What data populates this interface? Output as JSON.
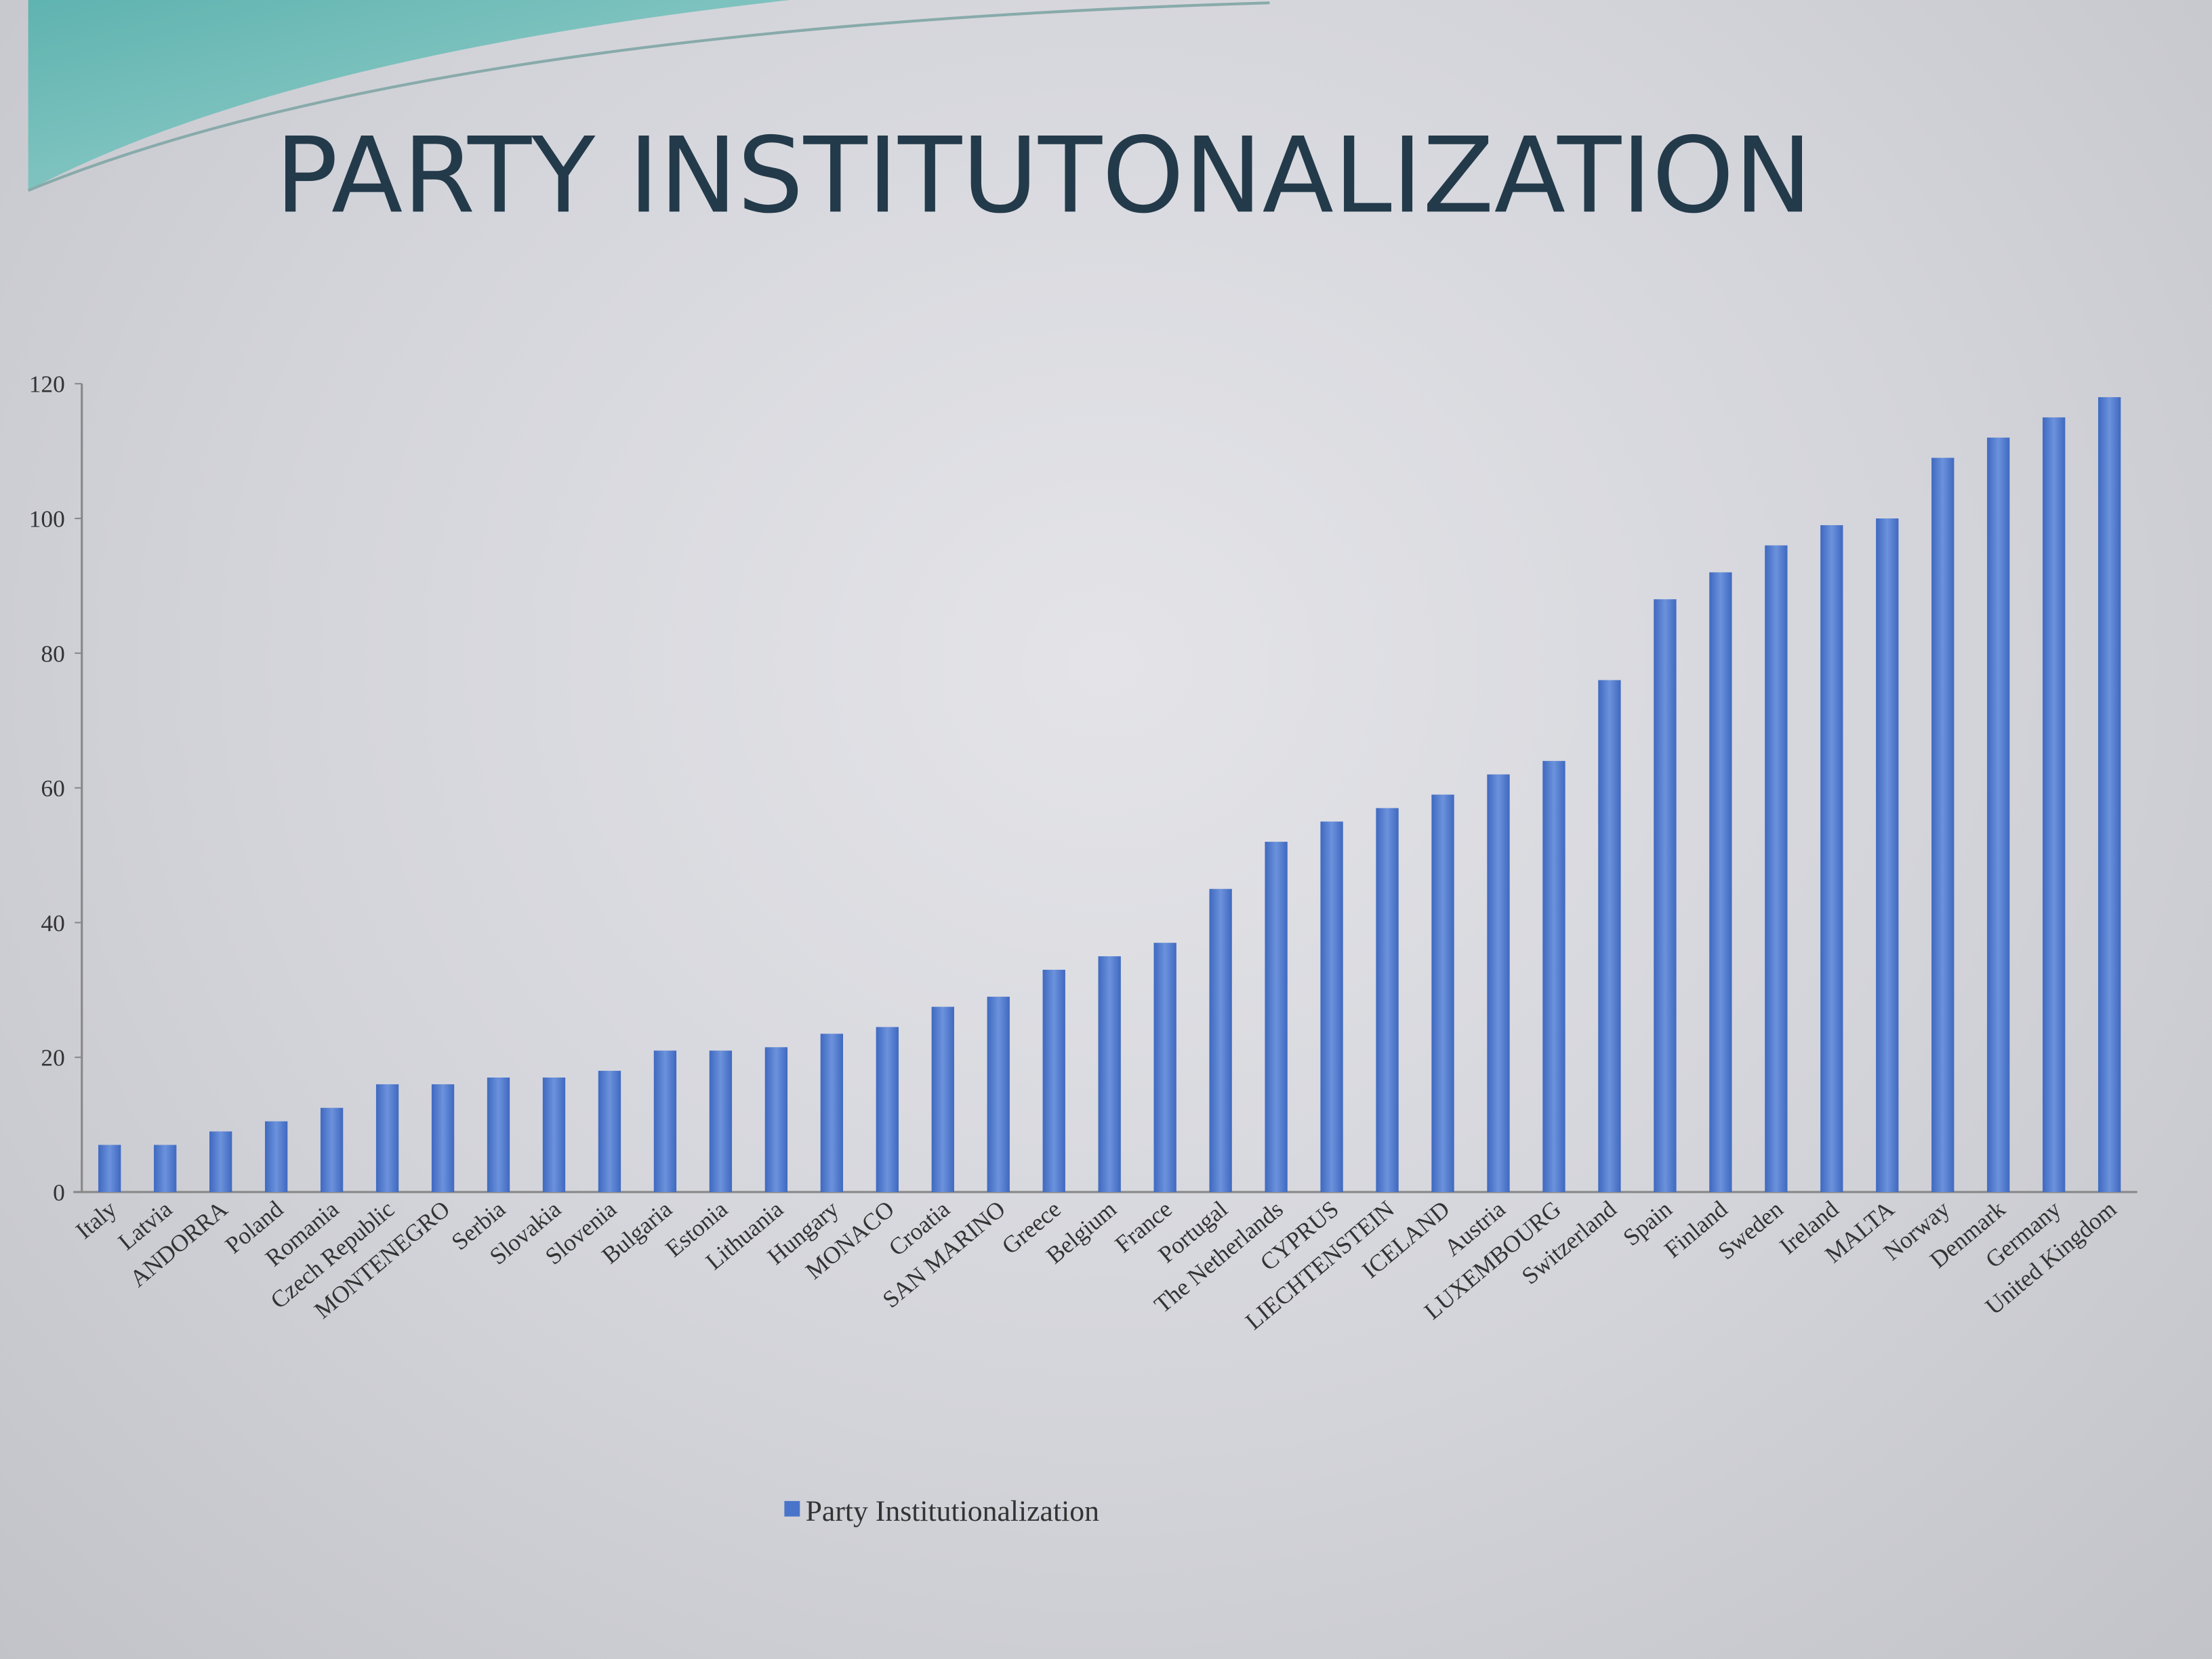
{
  "title": "PARTY INSTITUTONALIZATION",
  "chart_data": {
    "type": "bar",
    "title": "",
    "xlabel": "",
    "ylabel": "",
    "ylim": [
      0,
      120
    ],
    "yticks": [
      0,
      20,
      40,
      60,
      80,
      100,
      120
    ],
    "grid": false,
    "legend_position": "bottom",
    "bar_color": "#4a74c9",
    "categories": [
      "Italy",
      "Latvia",
      "ANDORRA",
      "Poland",
      "Romania",
      "Czech Republic",
      "MONTENEGRO",
      "Serbia",
      "Slovakia",
      "Slovenia",
      "Bulgaria",
      "Estonia",
      "Lithuania",
      "Hungary",
      "MONACO",
      "Croatia",
      "SAN MARINO",
      "Greece",
      "Belgium",
      "France",
      "Portugal",
      "The Netherlands",
      "CYPRUS",
      "LIECHTENSTEIN",
      "ICELAND",
      "Austria",
      "LUXEMBOURG",
      "Switzerland",
      "Spain",
      "Finland",
      "Sweden",
      "Ireland",
      "MALTA",
      "Norway",
      "Denmark",
      "Germany",
      "United Kingdom"
    ],
    "series": [
      {
        "name": "Party Institutionalization",
        "values": [
          7,
          7,
          9,
          10.5,
          12.5,
          16,
          16,
          17,
          17,
          18,
          21,
          21,
          21.5,
          23.5,
          24.5,
          27.5,
          29,
          33,
          35,
          37,
          45,
          52,
          55,
          57,
          59,
          62,
          64,
          76,
          88,
          92,
          96,
          99,
          100,
          109,
          112,
          115,
          118
        ]
      }
    ]
  }
}
